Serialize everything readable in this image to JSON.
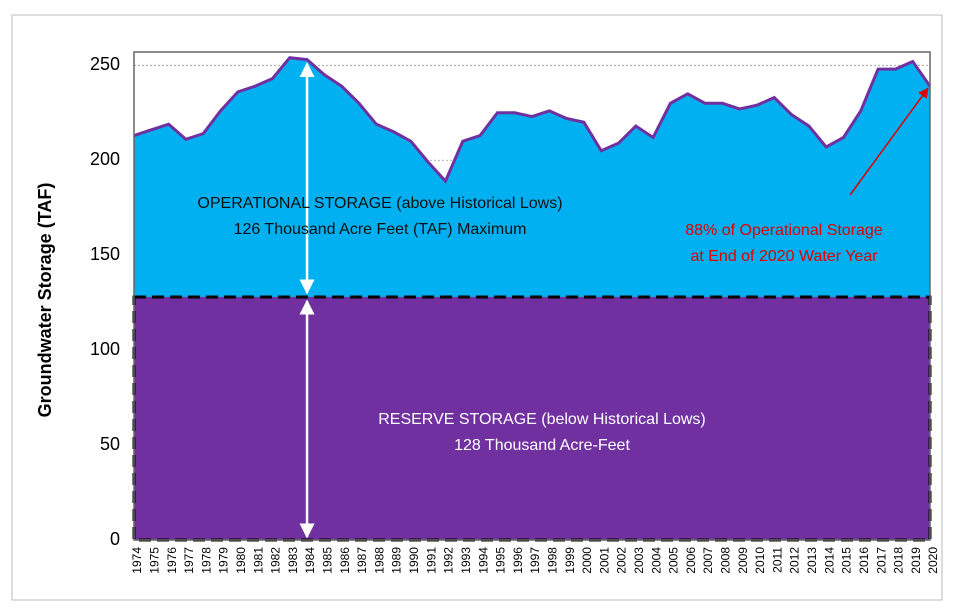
{
  "chart_data": {
    "type": "area",
    "y_label": "Groundwater Storage (TAF)",
    "categories": [
      "1974",
      "1975",
      "1976",
      "1977",
      "1978",
      "1979",
      "1980",
      "1981",
      "1982",
      "1983",
      "1984",
      "1985",
      "1986",
      "1987",
      "1988",
      "1989",
      "1990",
      "1991",
      "1992",
      "1993",
      "1994",
      "1995",
      "1996",
      "1997",
      "1998",
      "1999",
      "2000",
      "2001",
      "2002",
      "2003",
      "2004",
      "2005",
      "2006",
      "2007",
      "2008",
      "2009",
      "2010",
      "2011",
      "2012",
      "2013",
      "2014",
      "2015",
      "2016",
      "2017",
      "2018",
      "2019",
      "2020"
    ],
    "values": [
      213,
      216,
      219,
      211,
      214,
      226,
      236,
      239,
      243,
      254,
      253,
      245,
      239,
      230,
      219,
      215,
      210,
      199,
      189,
      210,
      213,
      225,
      225,
      223,
      226,
      222,
      220,
      205,
      209,
      218,
      212,
      230,
      235,
      230,
      230,
      227,
      229,
      233,
      224,
      218,
      207,
      212,
      226,
      248,
      248,
      252,
      239
    ],
    "reserve_level": 128,
    "color": "#00b0f0",
    "line_color": "#7030a0",
    "reserve_color": "#7030a0",
    "ylim": [
      0,
      257
    ],
    "yticks": [
      0,
      50,
      100,
      150,
      200,
      250
    ],
    "grid": true,
    "operational_label": [
      "OPERATIONAL STORAGE (above Historical Lows)",
      "126 Thousand Acre Feet (TAF) Maximum"
    ],
    "reserve_label": [
      "RESERVE STORAGE (below Historical Lows)",
      "128 Thousand Acre-Feet"
    ],
    "annotation": [
      "88% of Operational Storage",
      "at End of 2020 Water Year"
    ]
  }
}
